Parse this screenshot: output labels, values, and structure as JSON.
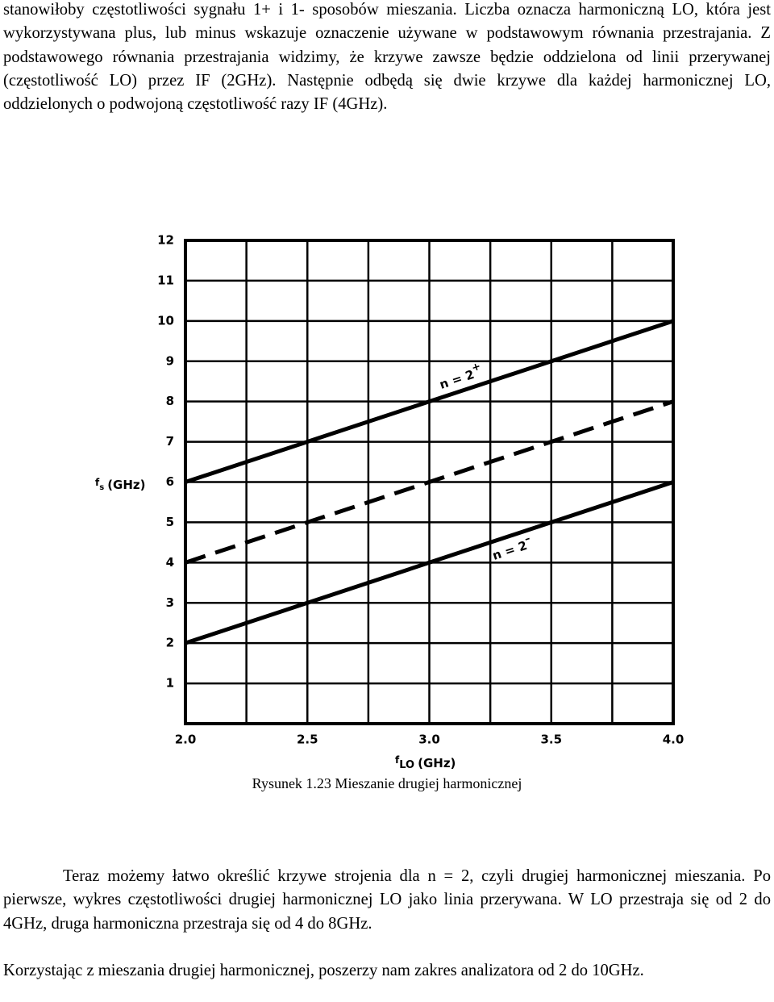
{
  "paragraphs_top": [
    "stanowiłoby częstotliwości sygnału 1+ i 1- sposobów mieszania. Liczba oznacza harmoniczną LO, która jest wykorzystywana plus, lub minus wskazuje oznaczenie używane w podstawowym równania przestrajania. Z podstawowego równania przestrajania widzimy, że krzywe zawsze będzie oddzielona od linii przerywanej (częstotliwość LO) przez IF (2GHz). Następnie odbędą się dwie krzywe dla każdej harmonicznej LO, oddzielonych o podwojoną częstotliwość razy IF (4GHz)."
  ],
  "chart_data": {
    "type": "line",
    "ylabel_symbol": "f",
    "ylabel_subscript": "s",
    "ylabel_unit": "(GHz)",
    "xlabel_symbol": "f",
    "xlabel_subscript": "LO",
    "xlabel_unit": "(GHz)",
    "x": [
      2,
      4
    ],
    "series": [
      {
        "name": "n = 2",
        "sup": "+",
        "color": "#000000",
        "dashed": false,
        "values": [
          6,
          10
        ]
      },
      {
        "color": "#000000",
        "dashed": true,
        "values": [
          4,
          8
        ]
      },
      {
        "name": "n = 2",
        "sup": "–",
        "color": "#000000",
        "dashed": false,
        "values": [
          2,
          6
        ]
      }
    ],
    "xlim": [
      2,
      4
    ],
    "xticks": [
      {
        "value": 2,
        "label": "2.0"
      },
      2.5,
      {
        "value": 3,
        "label": "3.0"
      },
      3.5,
      {
        "value": 4,
        "label": "4.0"
      }
    ],
    "x_minor_grid": [
      2.25,
      2.75,
      3.25,
      3.75
    ],
    "ylim": [
      0,
      12
    ],
    "yticks": [
      1,
      2,
      3,
      4,
      5,
      6,
      7,
      8,
      9,
      10,
      11,
      12
    ],
    "grid": true
  },
  "caption": "Rysunek 1.23 Mieszanie drugiej harmonicznej",
  "paragraphs_bottom": [
    "Teraz możemy łatwo określić krzywe strojenia dla n = 2, czyli drugiej harmonicznej mieszania. Po pierwsze, wykres częstotliwości drugiej harmonicznej LO jako linia przerywana. W LO przestraja się od 2 do 4GHz, druga harmoniczna przestraja się od 4 do 8GHz.",
    "Korzystając z mieszania drugiej harmonicznej, poszerzy nam zakres analizatora od 2 do 10GHz."
  ]
}
